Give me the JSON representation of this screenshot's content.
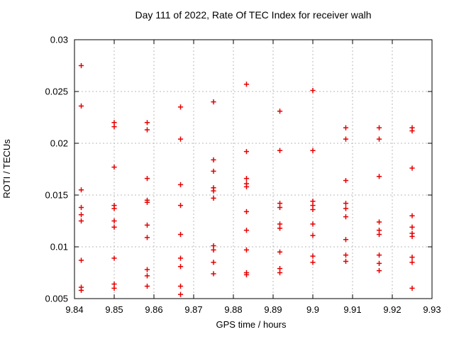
{
  "chart_data": {
    "type": "scatter",
    "title": "Day 111 of 2022, Rate Of TEC Index for receiver walh",
    "xlabel": "GPS time / hours",
    "ylabel": "ROTI / TECUs",
    "xlim": [
      9.84,
      9.93
    ],
    "ylim": [
      0.005,
      0.03
    ],
    "xtick_labels": [
      "9.84",
      "9.85",
      "9.86",
      "9.87",
      "9.88",
      "9.89",
      "9.9",
      "9.91",
      "9.92",
      "9.93"
    ],
    "ytick_labels": [
      "0.005",
      "0.01",
      "0.015",
      "0.02",
      "0.025",
      "0.03"
    ],
    "grid": true,
    "legend_position": "none",
    "marker_shape": "plus",
    "marker_color": "#e60000",
    "axis_color": "#000000",
    "grid_color": "#b8b8b8",
    "series": [
      {
        "name": "ROTI",
        "points_by_epoch": [
          {
            "x": 9.8417,
            "y": [
              0.0275,
              0.0236,
              0.0155,
              0.0138,
              0.0131,
              0.0125,
              0.0087,
              0.0061,
              0.0058
            ]
          },
          {
            "x": 9.85,
            "y": [
              0.022,
              0.0216,
              0.0177,
              0.014,
              0.0137,
              0.0125,
              0.0119,
              0.0089,
              0.0064,
              0.006
            ]
          },
          {
            "x": 9.8583,
            "y": [
              0.022,
              0.0213,
              0.0166,
              0.0145,
              0.0143,
              0.0121,
              0.0109,
              0.0078,
              0.0072,
              0.0062
            ]
          },
          {
            "x": 9.8667,
            "y": [
              0.0235,
              0.0204,
              0.016,
              0.014,
              0.0112,
              0.0089,
              0.0081,
              0.0062,
              0.0054
            ]
          },
          {
            "x": 9.875,
            "y": [
              0.024,
              0.0184,
              0.0173,
              0.0157,
              0.0154,
              0.0147,
              0.0101,
              0.0097,
              0.0085,
              0.0074
            ]
          },
          {
            "x": 9.8833,
            "y": [
              0.0257,
              0.0192,
              0.0166,
              0.0161,
              0.0158,
              0.0134,
              0.0116,
              0.0097,
              0.0075,
              0.0073
            ]
          },
          {
            "x": 9.8917,
            "y": [
              0.0231,
              0.0193,
              0.0142,
              0.0138,
              0.0122,
              0.0118,
              0.0095,
              0.0079,
              0.0075
            ]
          },
          {
            "x": 9.9,
            "y": [
              0.0251,
              0.0193,
              0.0144,
              0.014,
              0.0136,
              0.0122,
              0.0111,
              0.0091,
              0.0085
            ]
          },
          {
            "x": 9.9083,
            "y": [
              0.0215,
              0.0204,
              0.0164,
              0.0142,
              0.0137,
              0.0129,
              0.0107,
              0.0092,
              0.0086
            ]
          },
          {
            "x": 9.9167,
            "y": [
              0.0215,
              0.0204,
              0.0168,
              0.0124,
              0.0116,
              0.0112,
              0.0092,
              0.0084,
              0.0077
            ]
          },
          {
            "x": 9.925,
            "y": [
              0.0215,
              0.0212,
              0.0176,
              0.013,
              0.0119,
              0.0113,
              0.011,
              0.009,
              0.0085,
              0.006
            ]
          }
        ]
      }
    ]
  }
}
